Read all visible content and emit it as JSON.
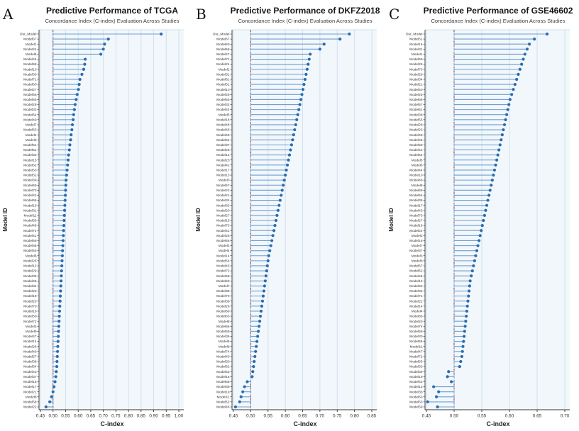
{
  "figure": {
    "background": "#ffffff"
  },
  "colors": {
    "dot": "#2a6cb0",
    "stem": "#6f9fd0",
    "baseline": "#a93226",
    "grid": "#cfe0ef",
    "panel_bg": "#f2f7fb",
    "axis": "#333333",
    "tick_label": "#333333"
  },
  "chart_data": [
    {
      "panel_letter": "A",
      "type": "lollipop",
      "title": "Predictive Performance of TCGA",
      "subtitle": "Concordance Index (C-index) Evaluation Across Studies",
      "xlabel": "C-index",
      "ylabel": "Model ID",
      "baseline": 0.5,
      "xlim": [
        0.45,
        1.0
      ],
      "xticks": [
        0.45,
        0.5,
        0.55,
        0.6,
        0.65,
        0.7,
        0.75,
        0.8,
        0.85,
        0.9,
        0.95,
        1.0
      ],
      "categories": [
        "Our_Model",
        "Model67",
        "Model1",
        "Model24",
        "Model5",
        "Model44",
        "Model58",
        "Model10",
        "Model30",
        "Model71",
        "Model60",
        "Model27",
        "Model55",
        "Model65",
        "Model28",
        "Model32",
        "Model64",
        "Model49",
        "Model7",
        "Model63",
        "Model4",
        "Model3",
        "Model61",
        "Model51",
        "Model33",
        "Model15",
        "Model62",
        "Model53",
        "Model52",
        "Model39",
        "Model69",
        "Model73",
        "Model42",
        "Model66",
        "Model13",
        "Model31",
        "Model11",
        "Model56",
        "Model48",
        "Model74",
        "Model41",
        "Model68",
        "Model36",
        "Model46",
        "Model6",
        "Model25",
        "Model12",
        "Model29",
        "Model35",
        "Model45",
        "Model34",
        "Model23",
        "Model19",
        "Model20",
        "Model70",
        "Model18",
        "Model50",
        "Model72",
        "Model2",
        "Model9",
        "Model47",
        "Model14",
        "Model26",
        "Model40",
        "Model57",
        "Model38",
        "Model54",
        "Model43",
        "Model37",
        "Model16",
        "Model17",
        "Model21",
        "Model8",
        "Model59",
        "Model22"
      ],
      "values": [
        0.93,
        0.72,
        0.705,
        0.7,
        0.69,
        0.628,
        0.626,
        0.622,
        0.615,
        0.607,
        0.604,
        0.601,
        0.596,
        0.592,
        0.588,
        0.585,
        0.582,
        0.58,
        0.577,
        0.575,
        0.572,
        0.57,
        0.567,
        0.565,
        0.562,
        0.56,
        0.558,
        0.556,
        0.554,
        0.552,
        0.551,
        0.55,
        0.549,
        0.548,
        0.547,
        0.546,
        0.545,
        0.544,
        0.543,
        0.542,
        0.541,
        0.54,
        0.539,
        0.538,
        0.537,
        0.536,
        0.535,
        0.534,
        0.533,
        0.532,
        0.531,
        0.53,
        0.529,
        0.528,
        0.527,
        0.526,
        0.525,
        0.524,
        0.523,
        0.522,
        0.521,
        0.52,
        0.519,
        0.518,
        0.517,
        0.516,
        0.515,
        0.513,
        0.511,
        0.508,
        0.504,
        0.5,
        0.494,
        0.487,
        0.472
      ]
    },
    {
      "panel_letter": "B",
      "type": "lollipop",
      "title": "Predictive Performance of DKFZ2018",
      "subtitle": "Concordance Index (C-index) Evaluation Across Studies",
      "xlabel": "C-index",
      "ylabel": "Model ID",
      "baseline": 0.5,
      "xlim": [
        0.45,
        0.85
      ],
      "xticks": [
        0.45,
        0.5,
        0.55,
        0.6,
        0.65,
        0.7,
        0.75,
        0.8,
        0.85
      ],
      "categories": [
        "Our_Model",
        "Model67",
        "Model60",
        "Model56",
        "Model47",
        "Model71",
        "Model24",
        "Model1",
        "Model31",
        "Model61",
        "Model51",
        "Model10",
        "Model29",
        "Model55",
        "Model32",
        "Model44",
        "Model5",
        "Model18",
        "Model48",
        "Model45",
        "Model49",
        "Model64",
        "Model37",
        "Model25",
        "Model12",
        "Model23",
        "Model42",
        "Model17",
        "Model13",
        "Model3",
        "Model57",
        "Model22",
        "Model21",
        "Model34",
        "Model33",
        "Model20",
        "Model27",
        "Model15",
        "Model73",
        "Model41",
        "Model28",
        "Model65",
        "Model2",
        "Model4",
        "Model14",
        "Model54",
        "Model43",
        "Model72",
        "Model58",
        "Model50",
        "Model7",
        "Model35",
        "Model70",
        "Model39",
        "Model26",
        "Model69",
        "Model63",
        "Model8",
        "Model66",
        "Model59",
        "Model36",
        "Model6",
        "Model9",
        "Model74",
        "Model40",
        "Model30",
        "Model62",
        "Model53",
        "Model16",
        "Model68",
        "Model38",
        "Model19",
        "Model11",
        "Model52",
        "Model46"
      ],
      "values": [
        0.785,
        0.758,
        0.712,
        0.7,
        0.672,
        0.669,
        0.666,
        0.663,
        0.66,
        0.657,
        0.654,
        0.651,
        0.648,
        0.645,
        0.642,
        0.639,
        0.636,
        0.633,
        0.63,
        0.627,
        0.624,
        0.621,
        0.618,
        0.615,
        0.612,
        0.609,
        0.606,
        0.603,
        0.6,
        0.597,
        0.594,
        0.591,
        0.588,
        0.585,
        0.582,
        0.579,
        0.576,
        0.573,
        0.57,
        0.567,
        0.564,
        0.561,
        0.558,
        0.555,
        0.552,
        0.55,
        0.548,
        0.546,
        0.544,
        0.542,
        0.54,
        0.538,
        0.536,
        0.534,
        0.532,
        0.53,
        0.528,
        0.526,
        0.524,
        0.522,
        0.52,
        0.518,
        0.516,
        0.514,
        0.512,
        0.51,
        0.508,
        0.506,
        0.504,
        0.49,
        0.482,
        0.477,
        0.472,
        0.468,
        0.456
      ]
    },
    {
      "panel_letter": "C",
      "type": "lollipop",
      "title": "Predictive Performance of GSE46602",
      "subtitle": "Concordance Index (C-index) Evaluation Across Studies",
      "xlabel": "C-index",
      "ylabel": "Model ID",
      "baseline": 0.5,
      "xlim": [
        0.45,
        0.7
      ],
      "xticks": [
        0.45,
        0.5,
        0.55,
        0.6,
        0.65,
        0.7
      ],
      "categories": [
        "Our_Model",
        "Model51",
        "Model15",
        "Model31",
        "Model1",
        "Model50",
        "Model26",
        "Model70",
        "Model29",
        "Model34",
        "Model21",
        "Model40",
        "Model25",
        "Model68",
        "Model57",
        "Model61",
        "Model38",
        "Model55",
        "Model28",
        "Model23",
        "Model49",
        "Model45",
        "Model60",
        "Model41",
        "Model54",
        "Model5",
        "Model6",
        "Model44",
        "Model10",
        "Model48",
        "Model8",
        "Model69",
        "Model64",
        "Model36",
        "Model17",
        "Model43",
        "Model73",
        "Model27",
        "Model18",
        "Model24",
        "Model2",
        "Model16",
        "Model7",
        "Model37",
        "Model3",
        "Model9",
        "Model67",
        "Model52",
        "Model46",
        "Model12",
        "Model62",
        "Model32",
        "Model71",
        "Model22",
        "Model14",
        "Model4",
        "Model66",
        "Model20",
        "Model74",
        "Model58",
        "Model30",
        "Model56",
        "Model11",
        "Model47",
        "Model72",
        "Model65",
        "Model33",
        "Model39",
        "Model19",
        "Model42",
        "Model13",
        "Model35",
        "Model63",
        "Model53",
        "Model59"
      ],
      "values": [
        0.668,
        0.645,
        0.636,
        0.632,
        0.628,
        0.625,
        0.622,
        0.619,
        0.616,
        0.613,
        0.61,
        0.607,
        0.604,
        0.601,
        0.599,
        0.597,
        0.595,
        0.593,
        0.591,
        0.589,
        0.587,
        0.585,
        0.583,
        0.581,
        0.579,
        0.577,
        0.575,
        0.573,
        0.571,
        0.569,
        0.567,
        0.565,
        0.563,
        0.561,
        0.559,
        0.557,
        0.555,
        0.553,
        0.551,
        0.549,
        0.547,
        0.545,
        0.543,
        0.541,
        0.539,
        0.537,
        0.535,
        0.533,
        0.531,
        0.529,
        0.528,
        0.527,
        0.526,
        0.525,
        0.524,
        0.523,
        0.522,
        0.521,
        0.52,
        0.519,
        0.518,
        0.517,
        0.516,
        0.515,
        0.514,
        0.512,
        0.51,
        0.49,
        0.488,
        0.495,
        0.463,
        0.472,
        0.468,
        0.452,
        0.47
      ]
    }
  ]
}
